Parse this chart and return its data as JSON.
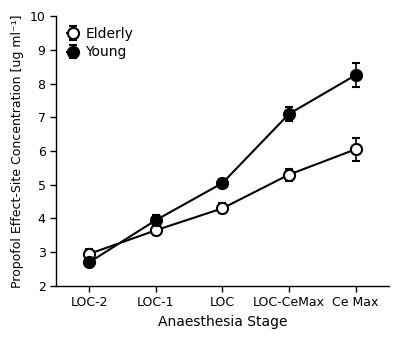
{
  "x_labels": [
    "LOC-2",
    "LOC-1",
    "LOC",
    "LOC-CeMax",
    "Ce Max"
  ],
  "x_positions": [
    0,
    1,
    2,
    3,
    4
  ],
  "elderly_means": [
    2.95,
    3.65,
    4.3,
    5.3,
    6.05
  ],
  "elderly_errors": [
    0.15,
    0.15,
    0.15,
    0.18,
    0.35
  ],
  "young_means": [
    2.7,
    3.95,
    5.05,
    7.1,
    8.25
  ],
  "young_errors": [
    0.12,
    0.15,
    0.12,
    0.2,
    0.35
  ],
  "line_color": "#000000",
  "legend_labels": [
    "Elderly",
    "Young"
  ],
  "xlabel": "Anaesthesia Stage",
  "ylabel": "Propofol Effect-Site Concentration [ug ml⁻¹]",
  "ylim": [
    2,
    10
  ],
  "yticks": [
    2,
    3,
    4,
    5,
    6,
    7,
    8,
    9,
    10
  ],
  "marker_size": 8,
  "line_width": 1.5,
  "capsize": 3,
  "elinewidth": 1.2,
  "background_color": "#ffffff",
  "figsize": [
    4.0,
    3.4
  ],
  "dpi": 100
}
